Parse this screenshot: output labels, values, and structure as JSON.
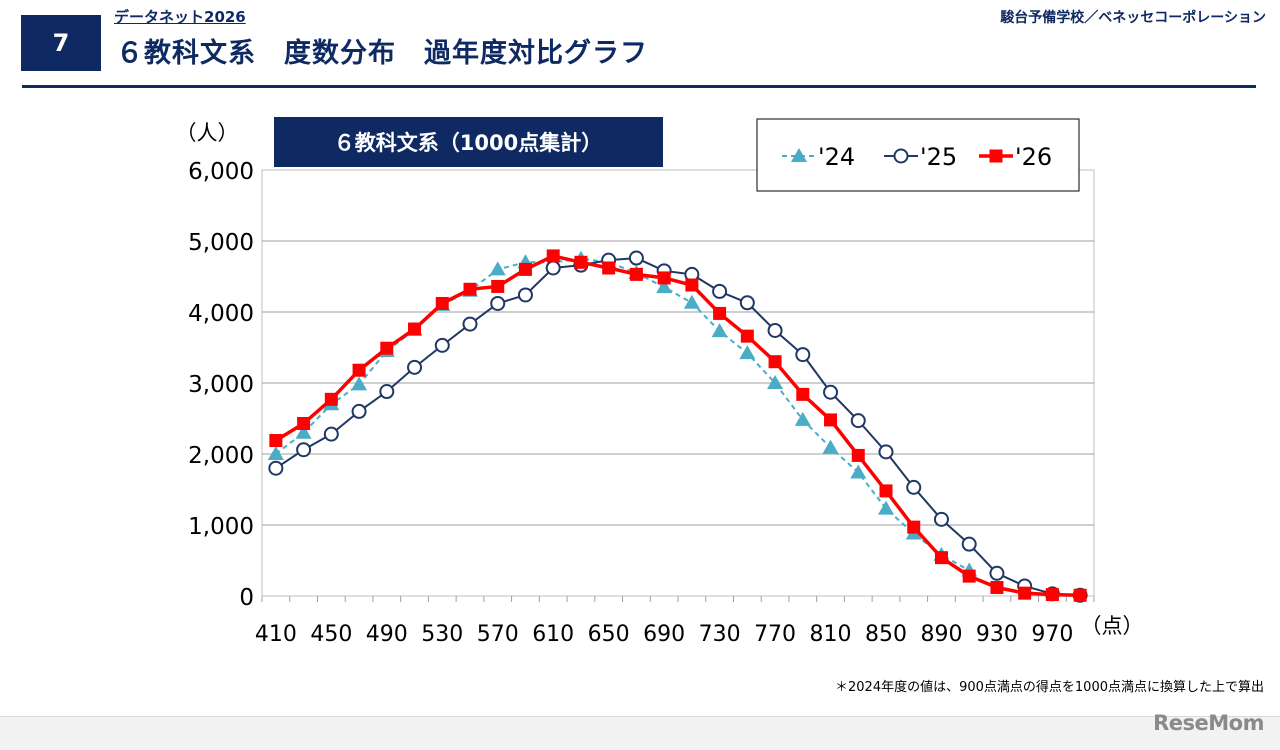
{
  "header": {
    "page_number": "7",
    "series_label": "データネット2026",
    "title": "６教科文系　度数分布　過年度対比グラフ",
    "publisher": "駿台予備学校／ベネッセコーポレーション"
  },
  "footnote": "＊2024年度の値は、900点満点の得点を1000点満点に換算した上で算出",
  "watermark": "ReseMom",
  "chart_data": {
    "type": "line",
    "title": "６教科文系（1000点集計）",
    "y_unit_label": "（人）",
    "x_unit_label": "（点）",
    "ylim": [
      0,
      6000
    ],
    "y_ticks": [
      0,
      1000,
      2000,
      3000,
      4000,
      5000,
      6000
    ],
    "y_tick_labels": [
      "0",
      "1,000",
      "2,000",
      "3,000",
      "4,000",
      "5,000",
      "6,000"
    ],
    "x_tick_labels": [
      "410",
      "450",
      "490",
      "530",
      "570",
      "610",
      "650",
      "690",
      "730",
      "770",
      "810",
      "850",
      "890",
      "930",
      "970"
    ],
    "x": [
      410,
      430,
      450,
      470,
      490,
      510,
      530,
      550,
      570,
      590,
      610,
      630,
      650,
      670,
      690,
      710,
      730,
      750,
      770,
      790,
      810,
      830,
      850,
      870,
      890,
      910,
      930,
      950,
      970,
      990
    ],
    "grid": "horizontal",
    "legend_position": "top-right",
    "series": [
      {
        "name": "'24",
        "color": "#4bacc6",
        "marker": "triangle",
        "line_style": "dashed",
        "values": [
          2000,
          2300,
          2700,
          2980,
          3450,
          3750,
          4100,
          4300,
          4600,
          4700,
          4700,
          4750,
          4700,
          4550,
          4350,
          4130,
          3730,
          3420,
          3000,
          2480,
          2090,
          1740,
          1230,
          880,
          580,
          360,
          null,
          null,
          null,
          null
        ]
      },
      {
        "name": "'25",
        "color": "#203864",
        "marker": "open-circle",
        "line_style": "solid",
        "values": [
          1800,
          2060,
          2280,
          2600,
          2880,
          3220,
          3530,
          3830,
          4120,
          4240,
          4620,
          4660,
          4730,
          4760,
          4580,
          4530,
          4290,
          4130,
          3740,
          3400,
          2870,
          2470,
          2030,
          1530,
          1080,
          730,
          320,
          140,
          30,
          10
        ]
      },
      {
        "name": "'26",
        "color": "#ff0000",
        "marker": "square",
        "line_style": "solid",
        "values": [
          2190,
          2430,
          2770,
          3180,
          3490,
          3760,
          4120,
          4320,
          4360,
          4600,
          4790,
          4700,
          4620,
          4530,
          4480,
          4380,
          3980,
          3660,
          3300,
          2840,
          2480,
          1980,
          1480,
          970,
          540,
          280,
          120,
          40,
          20,
          10
        ]
      }
    ]
  }
}
